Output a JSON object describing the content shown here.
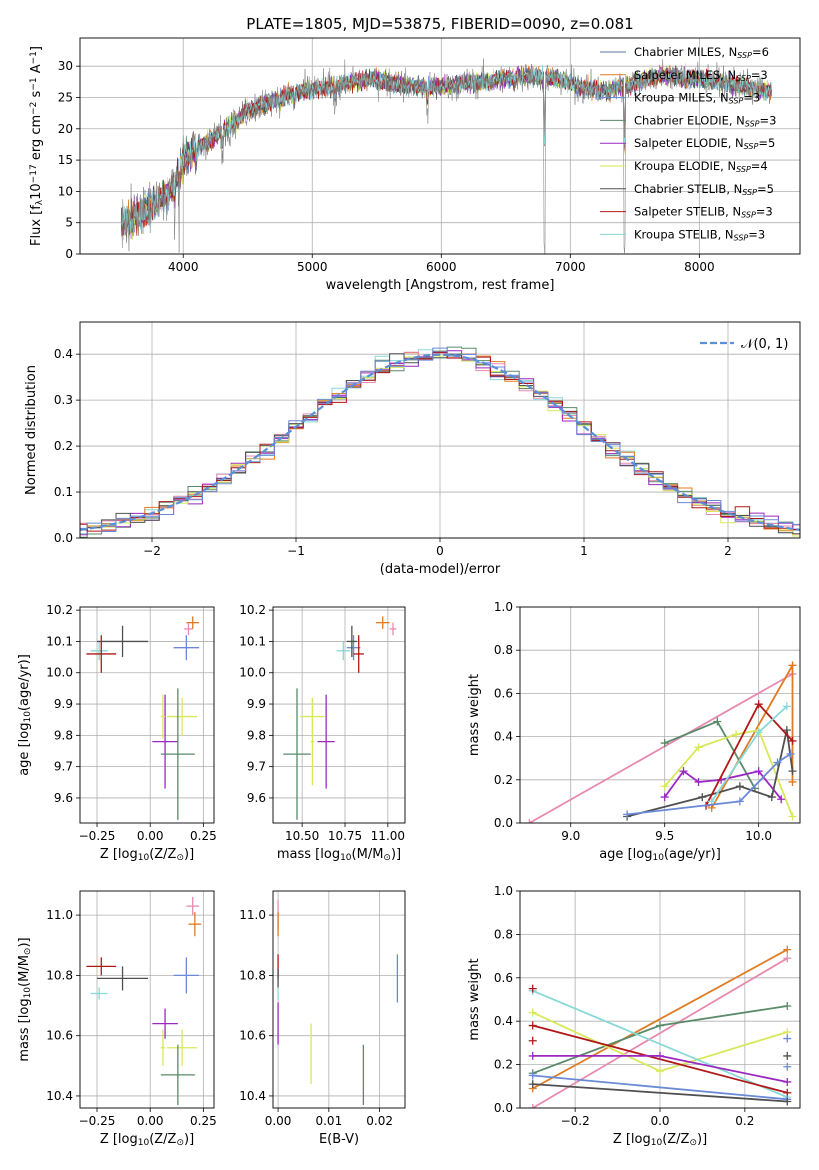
{
  "title": "PLATE=1805, MJD=53875, FIBERID=0090, z=0.081",
  "colors": {
    "chabrier_miles": "#5a7a9a",
    "salpeter_miles": "#e07b22",
    "kroupa_miles": "#6a8ad8",
    "chabrier_elodie": "#5a8a6a",
    "salpeter_elodie": "#9a28c0",
    "kroupa_elodie": "#d8e85a",
    "chabrier_stelib": "#505050",
    "salpeter_stelib": "#b01818",
    "kroupa_stelib": "#88d8d8",
    "pink": "#e88ab0",
    "normal": "#5b8fd6"
  },
  "chart_data": [
    {
      "type": "line",
      "panel": "spectrum",
      "title": "PLATE=1805, MJD=53875, FIBERID=0090, z=0.081",
      "xlabel": "wavelength [Angstrom, rest frame]",
      "ylabel": "Flux [f$_\\lambda$10$^{-17}$ erg cm$^{-2}$ s$^{-1}$ A$^{-1}$]",
      "xlim": [
        3200,
        8780
      ],
      "ylim": [
        0,
        34.5
      ],
      "xticks": [
        4000,
        5000,
        6000,
        7000,
        8000
      ],
      "yticks": [
        0,
        5,
        10,
        15,
        20,
        25,
        30
      ],
      "legend_position": "upper-right",
      "legend": [
        {
          "label": "Chabrier MILES, N",
          "sub": "SSP",
          "tail": "=6"
        },
        {
          "label": "Salpeter MILES, N",
          "sub": "SSP",
          "tail": "=3"
        },
        {
          "label": "Kroupa MILES, N",
          "sub": "SSP",
          "tail": "=3"
        },
        {
          "label": "Chabrier ELODIE, N",
          "sub": "SSP",
          "tail": "=3"
        },
        {
          "label": "Salpeter ELODIE, N",
          "sub": "SSP",
          "tail": "=5"
        },
        {
          "label": "Kroupa ELODIE, N",
          "sub": "SSP",
          "tail": "=4"
        },
        {
          "label": "Chabrier STELIB, N",
          "sub": "SSP",
          "tail": "=5"
        },
        {
          "label": "Salpeter STELIB, N",
          "sub": "SSP",
          "tail": "=3"
        },
        {
          "label": "Kroupa STELIB, N",
          "sub": "SSP",
          "tail": "=3"
        }
      ],
      "continuum": {
        "x": [
          3550,
          3700,
          3850,
          3950,
          4000,
          4100,
          4200,
          4300,
          4400,
          4500,
          4700,
          4900,
          5100,
          5300,
          5500,
          5700,
          5900,
          6100,
          6300,
          6500,
          6700,
          6900,
          7100,
          7300,
          7500,
          7700,
          8000,
          8300,
          8500
        ],
        "y": [
          5,
          7,
          9,
          12,
          15,
          17,
          18,
          19.5,
          21,
          23,
          24.5,
          26,
          26.5,
          27.5,
          28,
          27,
          26.5,
          27,
          27.5,
          28,
          28.5,
          28,
          26.5,
          26,
          27.5,
          28.5,
          28,
          27,
          26
        ]
      },
      "absorption_features": [
        {
          "x": 3934,
          "depth": 7
        },
        {
          "x": 3968,
          "depth": 6
        },
        {
          "x": 4101,
          "depth": 4
        },
        {
          "x": 4305,
          "depth": 5
        },
        {
          "x": 4861,
          "depth": 3
        },
        {
          "x": 5175,
          "depth": 4
        },
        {
          "x": 5893,
          "depth": 4
        },
        {
          "x": 6563,
          "depth": 2
        },
        {
          "x": 6800,
          "depth": 28
        },
        {
          "x": 7420,
          "depth": 26
        }
      ]
    },
    {
      "type": "line",
      "panel": "residual-histogram",
      "xlabel": "(data-model)/error",
      "ylabel": "Normed distribution",
      "xlim": [
        -2.5,
        2.5
      ],
      "ylim": [
        0,
        0.47
      ],
      "xticks": [
        -2,
        -1,
        0,
        1,
        2
      ],
      "yticks": [
        0,
        0.1,
        0.2,
        0.3,
        0.4
      ],
      "legend_position": "upper-right",
      "legend": [
        {
          "label": "𝒩(0, 1)"
        }
      ],
      "bin_width": 0.1,
      "n_histograms": 9
    },
    {
      "type": "scatter",
      "panel": "age-vs-Z",
      "xlabel": "Z [log$_{10}$(Z/Z$_\\odot$)]",
      "ylabel": "age  [log$_{10}$(age/yr)]",
      "xlim": [
        -0.33,
        0.3
      ],
      "ylim": [
        9.52,
        10.21
      ],
      "xticks": [
        -0.25,
        0.0,
        0.25
      ],
      "yticks": [
        9.6,
        9.7,
        9.8,
        9.9,
        10.0,
        10.1,
        10.2
      ],
      "points": [
        {
          "x": 0.17,
          "y": 10.08,
          "xerr": 0.06,
          "yerr": 0.04,
          "color": "kroupa_miles"
        },
        {
          "x": 0.2,
          "y": 10.16,
          "xerr": 0.03,
          "yerr": 0.02,
          "color": "salpeter_miles"
        },
        {
          "x": 0.18,
          "y": 10.14,
          "xerr": 0.02,
          "yerr": 0.02,
          "color": "pink"
        },
        {
          "x": -0.24,
          "y": 10.07,
          "xerr": 0.04,
          "yerr": 0.03,
          "color": "kroupa_stelib"
        },
        {
          "x": -0.23,
          "y": 10.06,
          "xerr": 0.07,
          "yerr": 0.06,
          "color": "salpeter_stelib"
        },
        {
          "x": -0.13,
          "y": 10.1,
          "xerr": 0.12,
          "yerr": 0.05,
          "color": "chabrier_stelib"
        },
        {
          "x": 0.15,
          "y": 9.86,
          "xerr": 0.07,
          "yerr": 0.06,
          "color": "kroupa_elodie"
        },
        {
          "x": 0.07,
          "y": 9.78,
          "xerr": 0.06,
          "yerr": 0.15,
          "color": "salpeter_elodie"
        },
        {
          "x": 0.06,
          "y": 9.86,
          "xerr": 0.01,
          "yerr": 0.07,
          "color": "kroupa_elodie"
        },
        {
          "x": 0.13,
          "y": 9.74,
          "xerr": 0.08,
          "yerr": 0.21,
          "color": "chabrier_elodie"
        }
      ]
    },
    {
      "type": "scatter",
      "panel": "age-vs-mass",
      "xlabel": "mass [log$_{10}$(M/M$_\\odot$)]",
      "xlim": [
        10.33,
        11.1
      ],
      "ylim": [
        9.52,
        10.21
      ],
      "xticks": [
        10.5,
        10.75,
        11.0
      ],
      "yticks": [
        9.6,
        9.7,
        9.8,
        9.9,
        10.0,
        10.1,
        10.2
      ],
      "points": [
        {
          "x": 10.8,
          "y": 10.08,
          "xerr": 0.04,
          "yerr": 0.04,
          "color": "kroupa_miles"
        },
        {
          "x": 10.97,
          "y": 10.16,
          "xerr": 0.04,
          "yerr": 0.02,
          "color": "salpeter_miles"
        },
        {
          "x": 11.03,
          "y": 10.14,
          "xerr": 0.02,
          "yerr": 0.02,
          "color": "pink"
        },
        {
          "x": 10.74,
          "y": 10.07,
          "xerr": 0.04,
          "yerr": 0.03,
          "color": "kroupa_stelib"
        },
        {
          "x": 10.83,
          "y": 10.06,
          "xerr": 0.03,
          "yerr": 0.06,
          "color": "salpeter_stelib"
        },
        {
          "x": 10.79,
          "y": 10.1,
          "xerr": 0.03,
          "yerr": 0.05,
          "color": "chabrier_stelib"
        },
        {
          "x": 10.56,
          "y": 9.86,
          "xerr": 0.07,
          "yerr": 0.06,
          "color": "kroupa_elodie"
        },
        {
          "x": 10.64,
          "y": 9.78,
          "xerr": 0.05,
          "yerr": 0.15,
          "color": "salpeter_elodie"
        },
        {
          "x": 10.56,
          "y": 9.78,
          "xerr": 0.01,
          "yerr": 0.14,
          "color": "kroupa_elodie"
        },
        {
          "x": 10.47,
          "y": 9.74,
          "xerr": 0.08,
          "yerr": 0.21,
          "color": "chabrier_elodie"
        }
      ]
    },
    {
      "type": "line",
      "panel": "mass-weight-vs-age",
      "xlabel": "age  [log$_{10}$(age/yr)]",
      "ylabel": "mass weight",
      "xlim": [
        8.73,
        10.22
      ],
      "ylim": [
        0,
        1.0
      ],
      "xticks": [
        9.0,
        9.5,
        10.0
      ],
      "yticks": [
        0.0,
        0.2,
        0.4,
        0.6,
        0.8,
        1.0
      ],
      "series": [
        {
          "color": "pink",
          "x": [
            8.78,
            10.18
          ],
          "y": [
            0.0,
            0.69
          ]
        },
        {
          "color": "salpeter_miles",
          "x": [
            9.75,
            10.18,
            10.18
          ],
          "y": [
            0.07,
            0.73,
            0.19
          ]
        },
        {
          "color": "chabrier_elodie",
          "x": [
            9.5,
            9.78,
            9.98
          ],
          "y": [
            0.37,
            0.47,
            0.16
          ]
        },
        {
          "color": "salpeter_elodie",
          "x": [
            9.5,
            9.6,
            9.68,
            9.8,
            10.0,
            10.12
          ],
          "y": [
            0.12,
            0.24,
            0.19,
            0.2,
            0.24,
            0.11
          ]
        },
        {
          "color": "kroupa_elodie",
          "x": [
            9.5,
            9.68,
            9.88,
            10.0,
            10.18
          ],
          "y": [
            0.17,
            0.35,
            0.41,
            0.43,
            0.03
          ]
        },
        {
          "color": "chabrier_stelib",
          "x": [
            9.3,
            9.7,
            9.9,
            10.07,
            10.15,
            10.18
          ],
          "y": [
            0.03,
            0.12,
            0.17,
            0.12,
            0.43,
            0.24
          ]
        },
        {
          "color": "salpeter_stelib",
          "x": [
            9.72,
            10.0,
            10.18
          ],
          "y": [
            0.08,
            0.55,
            0.38
          ]
        },
        {
          "color": "kroupa_stelib",
          "x": [
            9.75,
            10.0,
            10.15
          ],
          "y": [
            0.1,
            0.42,
            0.54
          ]
        },
        {
          "color": "kroupa_miles",
          "x": [
            9.3,
            9.9,
            10.1,
            10.17
          ],
          "y": [
            0.04,
            0.1,
            0.28,
            0.32
          ]
        }
      ]
    },
    {
      "type": "scatter",
      "panel": "mass-vs-Z",
      "xlabel": "Z [log$_{10}$(Z/Z$_\\odot$)]",
      "ylabel": "mass [log$_{10}$(M/M$_\\odot$)]",
      "xlim": [
        -0.33,
        0.3
      ],
      "ylim": [
        10.36,
        11.08
      ],
      "xticks": [
        -0.25,
        0.0,
        0.25
      ],
      "yticks": [
        10.4,
        10.6,
        10.8,
        11.0
      ],
      "points": [
        {
          "x": 0.17,
          "y": 10.8,
          "xerr": 0.06,
          "yerr": 0.06,
          "color": "kroupa_miles"
        },
        {
          "x": 0.21,
          "y": 10.97,
          "xerr": 0.03,
          "yerr": 0.04,
          "color": "salpeter_miles"
        },
        {
          "x": 0.2,
          "y": 11.03,
          "xerr": 0.03,
          "yerr": 0.03,
          "color": "pink"
        },
        {
          "x": -0.24,
          "y": 10.74,
          "xerr": 0.04,
          "yerr": 0.02,
          "color": "kroupa_stelib"
        },
        {
          "x": -0.23,
          "y": 10.83,
          "xerr": 0.07,
          "yerr": 0.03,
          "color": "salpeter_stelib"
        },
        {
          "x": -0.13,
          "y": 10.79,
          "xerr": 0.12,
          "yerr": 0.04,
          "color": "chabrier_stelib"
        },
        {
          "x": 0.15,
          "y": 10.56,
          "xerr": 0.07,
          "yerr": 0.06,
          "color": "kroupa_elodie"
        },
        {
          "x": 0.07,
          "y": 10.64,
          "xerr": 0.06,
          "yerr": 0.05,
          "color": "salpeter_elodie"
        },
        {
          "x": 0.06,
          "y": 10.56,
          "xerr": 0.01,
          "yerr": 0.06,
          "color": "kroupa_elodie"
        },
        {
          "x": 0.13,
          "y": 10.47,
          "xerr": 0.08,
          "yerr": 0.1,
          "color": "chabrier_elodie"
        }
      ]
    },
    {
      "type": "scatter",
      "panel": "mass-vs-EBV",
      "xlabel": "E(B-V)",
      "xlim": [
        -0.001,
        0.025
      ],
      "ylim": [
        10.36,
        11.08
      ],
      "xticks": [
        0.0,
        0.01,
        0.02
      ],
      "yticks": [
        10.4,
        10.6,
        10.8,
        11.0
      ],
      "points": [
        {
          "x": 0.0,
          "y": 11.0,
          "yerr": 0.05,
          "color": "pink"
        },
        {
          "x": 0.0,
          "y": 10.97,
          "yerr": 0.04,
          "color": "salpeter_miles"
        },
        {
          "x": 0.0,
          "y": 10.83,
          "yerr": 0.04,
          "color": "salpeter_stelib"
        },
        {
          "x": 0.0,
          "y": 10.79,
          "yerr": 0.03,
          "color": "chabrier_stelib"
        },
        {
          "x": 0.0,
          "y": 10.74,
          "yerr": 0.02,
          "color": "kroupa_stelib"
        },
        {
          "x": 0.0,
          "y": 10.64,
          "yerr": 0.07,
          "color": "salpeter_elodie"
        },
        {
          "x": 0.0065,
          "y": 10.54,
          "yerr": 0.1,
          "color": "kroupa_elodie"
        },
        {
          "x": 0.0168,
          "y": 10.47,
          "yerr": 0.1,
          "color": "chabrier_elodie"
        },
        {
          "x": 0.0235,
          "y": 10.79,
          "yerr": 0.08,
          "color": "kroupa_miles"
        }
      ]
    },
    {
      "type": "line",
      "panel": "mass-weight-vs-Z",
      "xlabel": "Z [log$_{10}$(Z/Z$_\\odot$)]",
      "ylabel": "mass weight",
      "xlim": [
        -0.33,
        0.33
      ],
      "ylim": [
        0,
        1.0
      ],
      "xticks": [
        -0.2,
        0.0,
        0.2
      ],
      "yticks": [
        0.0,
        0.2,
        0.4,
        0.6,
        0.8,
        1.0
      ],
      "series": [
        {
          "color": "salpeter_miles",
          "x": [
            -0.3,
            0.3
          ],
          "y": [
            0.09,
            0.73
          ]
        },
        {
          "color": "pink",
          "x": [
            -0.3,
            0.3
          ],
          "y": [
            0.0,
            0.69
          ]
        },
        {
          "color": "chabrier_elodie",
          "x": [
            -0.3,
            0.0,
            0.3
          ],
          "y": [
            0.16,
            0.38,
            0.47
          ]
        },
        {
          "color": "kroupa_elodie",
          "x": [
            -0.3,
            0.0,
            0.3
          ],
          "y": [
            0.44,
            0.17,
            0.35
          ]
        },
        {
          "color": "kroupa_stelib",
          "x": [
            -0.3,
            0.3
          ],
          "y": [
            0.54,
            0.05
          ]
        },
        {
          "color": "salpeter_stelib",
          "x": [
            -0.3,
            0.3
          ],
          "y": [
            0.38,
            0.07
          ]
        },
        {
          "color": "salpeter_elodie",
          "x": [
            -0.3,
            0.0,
            0.3
          ],
          "y": [
            0.24,
            0.24,
            0.12
          ]
        },
        {
          "color": "kroupa_miles",
          "x": [
            -0.3,
            0.3
          ],
          "y": [
            0.15,
            0.04
          ]
        },
        {
          "color": "chabrier_stelib",
          "x": [
            -0.3,
            0.3
          ],
          "y": [
            0.11,
            0.03
          ]
        }
      ],
      "edge_points": [
        {
          "x": -0.3,
          "y": 0.55,
          "color": "salpeter_stelib"
        },
        {
          "x": -0.3,
          "y": 0.31,
          "color": "salpeter_stelib"
        },
        {
          "x": 0.3,
          "y": 0.32,
          "color": "kroupa_miles"
        },
        {
          "x": 0.3,
          "y": 0.24,
          "color": "chabrier_stelib"
        },
        {
          "x": 0.3,
          "y": 0.19,
          "color": "kroupa_miles"
        }
      ]
    }
  ]
}
